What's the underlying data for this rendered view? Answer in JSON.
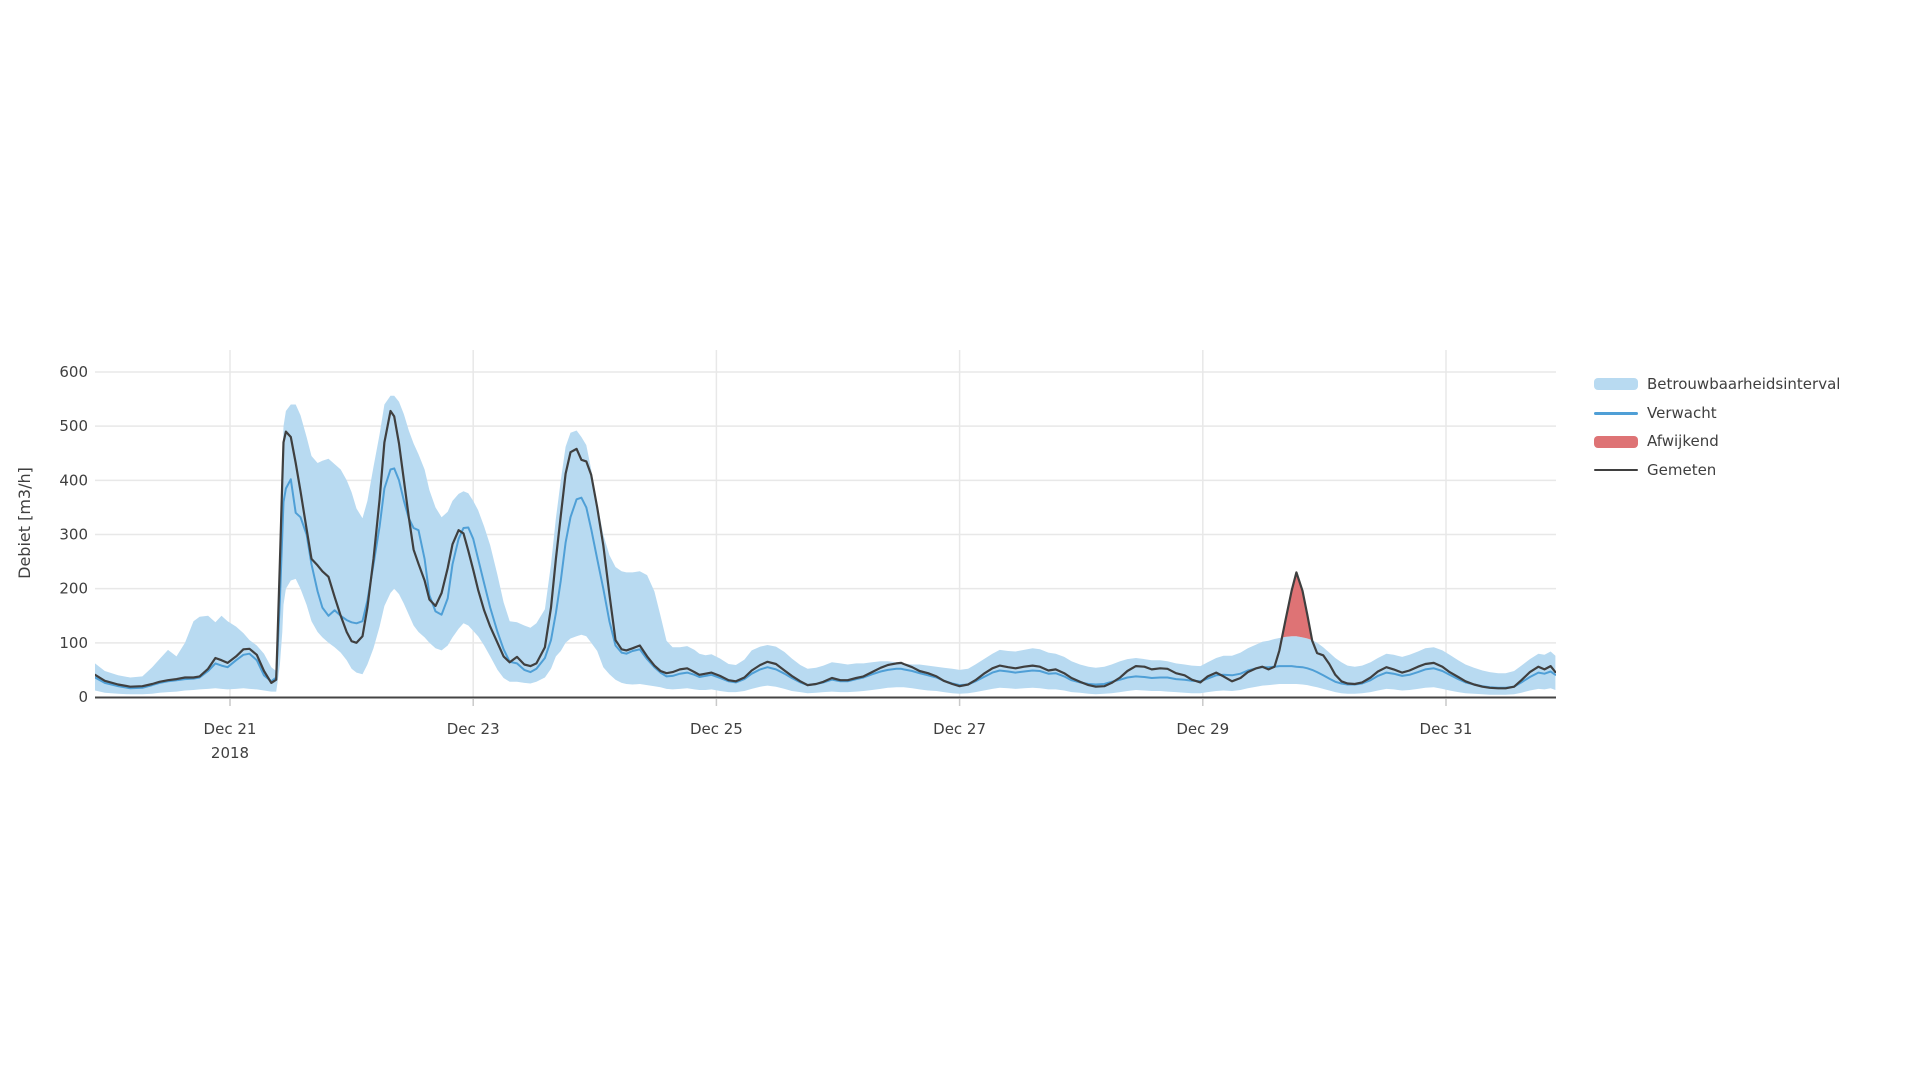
{
  "page": {
    "background_color": "#ffffff"
  },
  "chart_data": {
    "type": "line",
    "title": "",
    "ylabel": "Debiet [m3/h]",
    "xlabel": "",
    "x_unit": "days since 2018-12-21 00:00",
    "xlim": [
      -1.11,
      10.9
    ],
    "ylim": [
      0,
      640
    ],
    "grid": true,
    "legend_position": "right",
    "x_ticks": [
      {
        "t": 0,
        "label": "Dec 21",
        "sublabel": "2018"
      },
      {
        "t": 2,
        "label": "Dec 23"
      },
      {
        "t": 4,
        "label": "Dec 25"
      },
      {
        "t": 6,
        "label": "Dec 27"
      },
      {
        "t": 8,
        "label": "Dec 29"
      },
      {
        "t": 10,
        "label": "Dec 31"
      }
    ],
    "y_ticks": [
      0,
      100,
      200,
      300,
      400,
      500,
      600
    ],
    "colors": {
      "band": "#b8daf1",
      "verwacht": "#4f9fd6",
      "afwijkend": "#de7375",
      "gemeten": "#3f3f3f",
      "grid": "#e8e8e8",
      "axis_line": "#444444",
      "tick_mark": "#c9c9c9",
      "tick_text": "#3f3f3f"
    },
    "legend": [
      {
        "label": "Betrouwbaarheidsinterval",
        "swatch": "band",
        "thickness": 12,
        "color": "#b8daf1"
      },
      {
        "label": "Verwacht",
        "swatch": "line",
        "thickness": 3,
        "color": "#4f9fd6"
      },
      {
        "label": "Afwijkend",
        "swatch": "band",
        "thickness": 12,
        "color": "#de7375"
      },
      {
        "label": "Gemeten",
        "swatch": "line",
        "thickness": 2,
        "color": "#3f3f3f"
      }
    ],
    "series": [
      {
        "name": "Betrouwbaarheidsinterval",
        "type": "confidence-band"
      },
      {
        "name": "Verwacht",
        "type": "line"
      },
      {
        "name": "Afwijkend",
        "type": "anomaly-area",
        "definition": "area where Gemeten exceeds band upper bound"
      },
      {
        "name": "Gemeten",
        "type": "line"
      }
    ],
    "t": [
      -1.11,
      -1.03,
      -0.92,
      -0.82,
      -0.72,
      -0.64,
      -0.58,
      -0.51,
      -0.44,
      -0.37,
      -0.3,
      -0.25,
      -0.18,
      -0.12,
      -0.07,
      -0.02,
      0.05,
      0.11,
      0.16,
      0.22,
      0.28,
      0.34,
      0.38,
      0.39,
      0.41,
      0.43,
      0.44,
      0.46,
      0.5,
      0.54,
      0.58,
      0.63,
      0.67,
      0.72,
      0.76,
      0.81,
      0.86,
      0.91,
      0.96,
      1.0,
      1.04,
      1.09,
      1.13,
      1.18,
      1.23,
      1.27,
      1.32,
      1.35,
      1.39,
      1.43,
      1.47,
      1.51,
      1.55,
      1.6,
      1.64,
      1.69,
      1.74,
      1.79,
      1.83,
      1.88,
      1.92,
      1.96,
      2.0,
      2.04,
      2.09,
      2.14,
      2.2,
      2.25,
      2.3,
      2.36,
      2.42,
      2.47,
      2.52,
      2.59,
      2.64,
      2.68,
      2.72,
      2.76,
      2.8,
      2.85,
      2.89,
      2.93,
      2.97,
      3.02,
      3.07,
      3.12,
      3.17,
      3.22,
      3.26,
      3.31,
      3.37,
      3.43,
      3.49,
      3.54,
      3.59,
      3.64,
      3.7,
      3.76,
      3.82,
      3.86,
      3.91,
      3.96,
      4.03,
      4.1,
      4.16,
      4.23,
      4.29,
      4.36,
      4.42,
      4.49,
      4.56,
      4.62,
      4.69,
      4.75,
      4.82,
      4.88,
      4.95,
      5.02,
      5.08,
      5.15,
      5.21,
      5.28,
      5.35,
      5.41,
      5.48,
      5.52,
      5.54,
      5.61,
      5.67,
      5.74,
      5.81,
      5.87,
      5.94,
      6.0,
      6.07,
      6.13,
      6.2,
      6.27,
      6.33,
      6.4,
      6.46,
      6.53,
      6.6,
      6.66,
      6.73,
      6.79,
      6.86,
      6.92,
      6.99,
      7.06,
      7.12,
      7.19,
      7.25,
      7.32,
      7.38,
      7.45,
      7.52,
      7.58,
      7.65,
      7.71,
      7.78,
      7.85,
      7.91,
      7.98,
      8.04,
      8.11,
      8.17,
      8.24,
      8.31,
      8.37,
      8.44,
      8.49,
      8.54,
      8.59,
      8.63,
      8.68,
      8.73,
      8.77,
      8.82,
      8.86,
      8.9,
      8.94,
      8.99,
      9.04,
      9.09,
      9.14,
      9.19,
      9.25,
      9.31,
      9.38,
      9.44,
      9.51,
      9.57,
      9.64,
      9.7,
      9.77,
      9.83,
      9.9,
      9.97,
      10.03,
      10.1,
      10.16,
      10.23,
      10.3,
      10.36,
      10.43,
      10.49,
      10.56,
      10.62,
      10.69,
      10.76,
      10.81,
      10.86,
      10.9
    ],
    "gemeten": [
      41,
      30,
      23,
      19,
      20,
      24,
      28,
      31,
      33,
      36,
      36,
      38,
      52,
      72,
      68,
      63,
      75,
      88,
      89,
      78,
      48,
      26,
      32,
      100,
      250,
      400,
      470,
      490,
      480,
      432,
      380,
      310,
      255,
      243,
      232,
      222,
      185,
      150,
      120,
      103,
      100,
      112,
      165,
      255,
      365,
      470,
      528,
      518,
      468,
      400,
      332,
      272,
      246,
      215,
      180,
      168,
      192,
      238,
      282,
      308,
      302,
      270,
      235,
      198,
      160,
      130,
      100,
      75,
      64,
      74,
      60,
      57,
      62,
      92,
      165,
      255,
      335,
      412,
      452,
      458,
      438,
      435,
      410,
      350,
      280,
      190,
      105,
      88,
      86,
      90,
      95,
      75,
      58,
      48,
      44,
      46,
      51,
      53,
      46,
      41,
      43,
      45,
      39,
      31,
      29,
      36,
      49,
      59,
      65,
      61,
      49,
      39,
      29,
      22,
      24,
      28,
      35,
      31,
      31,
      35,
      38,
      46,
      54,
      59,
      62,
      63,
      61,
      55,
      48,
      44,
      38,
      30,
      24,
      20,
      23,
      31,
      43,
      53,
      58,
      55,
      53,
      56,
      58,
      56,
      49,
      51,
      44,
      35,
      28,
      22,
      19,
      20,
      26,
      36,
      48,
      57,
      56,
      51,
      53,
      52,
      44,
      40,
      32,
      27,
      38,
      45,
      38,
      29,
      35,
      46,
      53,
      56,
      51,
      56,
      86,
      142,
      196,
      230,
      196,
      151,
      104,
      81,
      77,
      61,
      41,
      29,
      25,
      24,
      27,
      36,
      47,
      55,
      51,
      45,
      49,
      56,
      61,
      63,
      56,
      46,
      37,
      29,
      23,
      19,
      17,
      16,
      16,
      19,
      31,
      46,
      56,
      51,
      57,
      46
    ],
    "verwacht": [
      36,
      26,
      20,
      16,
      17,
      22,
      26,
      29,
      31,
      33,
      34,
      36,
      48,
      62,
      58,
      55,
      68,
      78,
      80,
      68,
      40,
      29,
      36,
      80,
      180,
      300,
      360,
      385,
      402,
      340,
      332,
      300,
      245,
      195,
      165,
      150,
      160,
      150,
      142,
      138,
      136,
      140,
      178,
      245,
      315,
      385,
      420,
      422,
      400,
      362,
      330,
      312,
      308,
      255,
      188,
      158,
      152,
      182,
      245,
      292,
      312,
      313,
      292,
      255,
      210,
      165,
      120,
      88,
      65,
      62,
      50,
      46,
      52,
      72,
      105,
      155,
      215,
      285,
      332,
      365,
      368,
      350,
      310,
      255,
      200,
      140,
      95,
      82,
      80,
      85,
      88,
      70,
      55,
      45,
      38,
      39,
      43,
      45,
      41,
      37,
      39,
      41,
      35,
      29,
      27,
      33,
      43,
      51,
      55,
      51,
      43,
      35,
      27,
      22,
      24,
      27,
      32,
      29,
      29,
      33,
      36,
      42,
      47,
      50,
      52,
      52,
      51,
      48,
      44,
      40,
      36,
      30,
      25,
      22,
      23,
      29,
      37,
      45,
      49,
      47,
      45,
      47,
      49,
      48,
      43,
      44,
      38,
      31,
      27,
      24,
      23,
      24,
      28,
      32,
      36,
      38,
      37,
      35,
      36,
      36,
      33,
      32,
      30,
      29,
      34,
      40,
      41,
      40,
      43,
      49,
      53,
      55,
      55,
      56,
      57,
      57,
      57,
      56,
      55,
      53,
      50,
      46,
      40,
      34,
      28,
      25,
      23,
      23,
      25,
      31,
      39,
      45,
      43,
      39,
      41,
      46,
      51,
      53,
      48,
      41,
      33,
      27,
      23,
      20,
      18,
      17,
      17,
      19,
      27,
      37,
      45,
      43,
      47,
      41
    ],
    "band_upper": [
      62,
      48,
      40,
      36,
      38,
      55,
      70,
      87,
      75,
      100,
      140,
      148,
      150,
      138,
      150,
      140,
      130,
      118,
      105,
      95,
      80,
      55,
      48,
      130,
      280,
      430,
      500,
      528,
      540,
      540,
      520,
      480,
      445,
      432,
      436,
      440,
      430,
      420,
      400,
      378,
      348,
      330,
      362,
      425,
      485,
      540,
      556,
      556,
      545,
      522,
      492,
      468,
      448,
      420,
      382,
      350,
      332,
      342,
      362,
      375,
      380,
      376,
      362,
      345,
      315,
      280,
      225,
      175,
      140,
      138,
      132,
      128,
      136,
      162,
      245,
      330,
      400,
      462,
      488,
      492,
      480,
      465,
      420,
      358,
      300,
      262,
      240,
      232,
      230,
      230,
      232,
      225,
      195,
      150,
      104,
      92,
      92,
      94,
      87,
      80,
      77,
      79,
      71,
      61,
      59,
      69,
      86,
      93,
      96,
      93,
      83,
      71,
      59,
      52,
      54,
      58,
      64,
      62,
      60,
      62,
      62,
      64,
      66,
      66,
      64,
      62,
      62,
      60,
      60,
      58,
      56,
      54,
      52,
      50,
      52,
      60,
      70,
      80,
      87,
      85,
      84,
      87,
      90,
      88,
      82,
      80,
      74,
      66,
      60,
      56,
      54,
      56,
      60,
      66,
      70,
      72,
      70,
      68,
      68,
      66,
      62,
      60,
      58,
      57,
      64,
      72,
      76,
      76,
      82,
      90,
      97,
      102,
      104,
      107,
      109,
      111,
      112,
      112,
      110,
      108,
      105,
      100,
      92,
      82,
      72,
      64,
      58,
      56,
      58,
      64,
      72,
      80,
      78,
      74,
      78,
      84,
      90,
      92,
      86,
      78,
      68,
      60,
      54,
      49,
      46,
      44,
      44,
      48,
      58,
      70,
      80,
      78,
      84,
      76
    ],
    "band_lower": [
      12,
      8,
      6,
      5,
      5,
      6,
      8,
      9,
      10,
      12,
      13,
      14,
      15,
      16,
      15,
      14,
      15,
      16,
      15,
      14,
      12,
      10,
      10,
      25,
      60,
      120,
      170,
      200,
      215,
      218,
      200,
      170,
      140,
      120,
      110,
      100,
      92,
      82,
      68,
      52,
      45,
      42,
      60,
      90,
      130,
      168,
      192,
      200,
      190,
      172,
      152,
      132,
      120,
      110,
      100,
      90,
      86,
      95,
      110,
      126,
      136,
      132,
      122,
      112,
      95,
      75,
      50,
      35,
      28,
      28,
      26,
      25,
      28,
      36,
      52,
      75,
      85,
      100,
      108,
      112,
      115,
      112,
      100,
      85,
      55,
      42,
      32,
      26,
      24,
      23,
      24,
      22,
      20,
      18,
      15,
      14,
      15,
      16,
      14,
      13,
      13,
      14,
      11,
      9,
      9,
      11,
      15,
      19,
      21,
      19,
      15,
      11,
      9,
      7,
      8,
      9,
      10,
      9,
      9,
      10,
      11,
      13,
      15,
      17,
      18,
      18,
      18,
      16,
      14,
      12,
      11,
      9,
      7,
      6,
      7,
      9,
      12,
      15,
      17,
      16,
      15,
      16,
      17,
      16,
      14,
      14,
      12,
      9,
      8,
      6,
      5,
      6,
      7,
      9,
      11,
      13,
      12,
      11,
      11,
      10,
      9,
      8,
      7,
      7,
      9,
      11,
      12,
      11,
      13,
      16,
      19,
      21,
      22,
      23,
      24,
      24,
      24,
      24,
      23,
      22,
      20,
      18,
      15,
      12,
      9,
      7,
      6,
      6,
      7,
      9,
      12,
      15,
      14,
      12,
      13,
      15,
      17,
      18,
      15,
      12,
      9,
      7,
      6,
      5,
      4,
      4,
      4,
      5,
      8,
      12,
      15,
      14,
      16,
      13
    ]
  }
}
